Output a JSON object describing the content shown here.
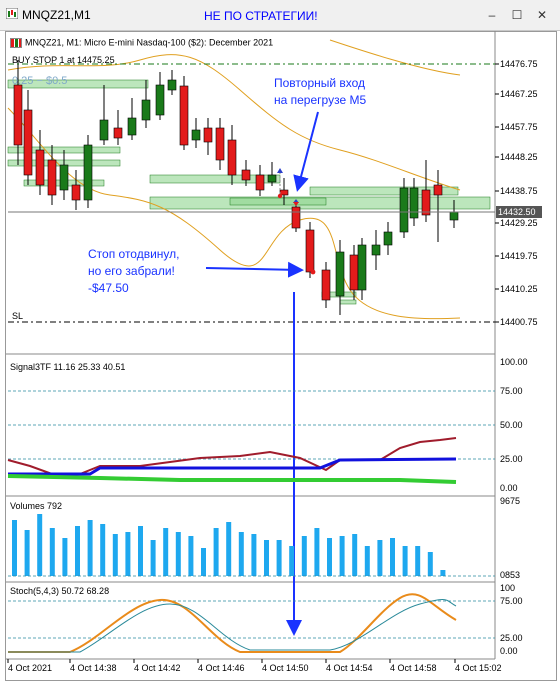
{
  "window": {
    "title": "MNQZ21,M1",
    "annotation": "НЕ ПО СТРАТЕГИИ!",
    "buttons": {
      "minimize": "‒",
      "maximize": "☐",
      "close": "✕"
    }
  },
  "chart": {
    "header": "MNQZ21, M1:  Micro E-mini Nasdaq-100 ($2): December 2021",
    "order_label": "BUY STOP 1 at 14475.25",
    "tp_label": "0.25 − $0.5",
    "sl_label": "SL",
    "annotation_reentry": [
      "Повторный вход",
      "на перегрузе М5"
    ],
    "annotation_stop": [
      "Стоп отодвинул,",
      "но его забрали!",
      "-$47.50"
    ],
    "price_axis": [
      "14476.75",
      "14467.25",
      "14457.75",
      "14448.25",
      "14438.75",
      "14429.25",
      "14419.75",
      "14410.25",
      "14400.75"
    ],
    "current_price": "14432.50",
    "time_axis": [
      "4 Oct 2021",
      "4 Oct 14:38",
      "4 Oct 14:42",
      "4 Oct 14:46",
      "4 Oct 14:50",
      "4 Oct 14:54",
      "4 Oct 14:58",
      "4 Oct 15:02"
    ]
  },
  "signal_panel": {
    "label": "Signal3TF 11.16 25.33 40.51",
    "axis": [
      "100.00",
      "75.00",
      "50.00",
      "25.00",
      "0.00"
    ]
  },
  "volume_panel": {
    "label": "Volumes 792",
    "axis": [
      "9675",
      "0853"
    ]
  },
  "stoch_panel": {
    "label": "Stoch(5,4,3) 50.72 68.28",
    "axis": [
      "100",
      "75.00",
      "25.00",
      "0.00"
    ]
  },
  "colors": {
    "bull": "#1a7a1a",
    "bear": "#e31b1b",
    "band": "#e0a020",
    "zone": "#8fd68f",
    "annotation": "#1a33ff",
    "signal_red": "#a01c2c",
    "signal_blue": "#1111dd",
    "signal_green": "#33cc33",
    "volume": "#1ea8ef",
    "stoch_main": "#e98b1b",
    "stoch_signal": "#2a8a9a"
  }
}
